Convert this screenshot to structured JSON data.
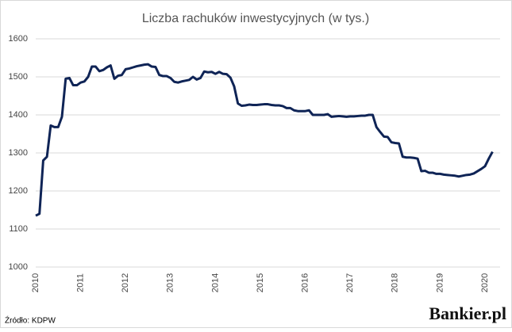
{
  "chart_data": {
    "type": "line",
    "title": "Liczba rachuków inwestycyjnych (w tys.)",
    "source": "Źródło: KDPW",
    "logo": "Bankier.pl",
    "categories": [
      "2010",
      null,
      null,
      null,
      null,
      null,
      null,
      null,
      null,
      null,
      null,
      null,
      "2011",
      null,
      null,
      null,
      null,
      null,
      null,
      null,
      null,
      null,
      null,
      null,
      "2012",
      null,
      null,
      null,
      null,
      null,
      null,
      null,
      null,
      null,
      null,
      null,
      "2013",
      null,
      null,
      null,
      null,
      null,
      null,
      null,
      null,
      null,
      null,
      null,
      "2014",
      null,
      null,
      null,
      null,
      null,
      null,
      null,
      null,
      null,
      null,
      null,
      "2015",
      null,
      null,
      null,
      null,
      null,
      null,
      null,
      null,
      null,
      null,
      null,
      "2016",
      null,
      null,
      null,
      null,
      null,
      null,
      null,
      null,
      null,
      null,
      null,
      "2017",
      null,
      null,
      null,
      null,
      null,
      null,
      null,
      null,
      null,
      null,
      null,
      "2018",
      null,
      null,
      null,
      null,
      null,
      null,
      null,
      null,
      null,
      null,
      null,
      "2019",
      null,
      null,
      null,
      null,
      null,
      null,
      null,
      null,
      null,
      null,
      null,
      "2020",
      null,
      null
    ],
    "series": [
      {
        "name": "Liczba rachunków",
        "color": "#0f2456",
        "values": [
          1135,
          1140,
          1280,
          1290,
          1372,
          1368,
          1368,
          1395,
          1495,
          1497,
          1478,
          1478,
          1485,
          1488,
          1500,
          1527,
          1527,
          1515,
          1518,
          1525,
          1530,
          1495,
          1503,
          1505,
          1520,
          1522,
          1525,
          1528,
          1530,
          1532,
          1533,
          1527,
          1526,
          1505,
          1502,
          1502,
          1497,
          1487,
          1485,
          1488,
          1490,
          1492,
          1500,
          1493,
          1497,
          1514,
          1512,
          1513,
          1508,
          1513,
          1508,
          1507,
          1498,
          1475,
          1430,
          1424,
          1425,
          1427,
          1426,
          1426,
          1427,
          1428,
          1428,
          1426,
          1425,
          1425,
          1423,
          1418,
          1418,
          1412,
          1410,
          1410,
          1410,
          1412,
          1400,
          1400,
          1400,
          1400,
          1402,
          1395,
          1396,
          1397,
          1396,
          1395,
          1396,
          1396,
          1397,
          1398,
          1398,
          1400,
          1400,
          1368,
          1355,
          1343,
          1342,
          1328,
          1326,
          1325,
          1290,
          1288,
          1288,
          1287,
          1285,
          1252,
          1253,
          1248,
          1248,
          1245,
          1245,
          1243,
          1242,
          1241,
          1240,
          1238,
          1240,
          1242,
          1243,
          1246,
          1252,
          1258,
          1265,
          1285,
          1303
        ]
      }
    ],
    "ylim": [
      1000,
      1600
    ],
    "yticks": [
      1000,
      1100,
      1200,
      1300,
      1400,
      1500,
      1600
    ],
    "grid": true
  }
}
